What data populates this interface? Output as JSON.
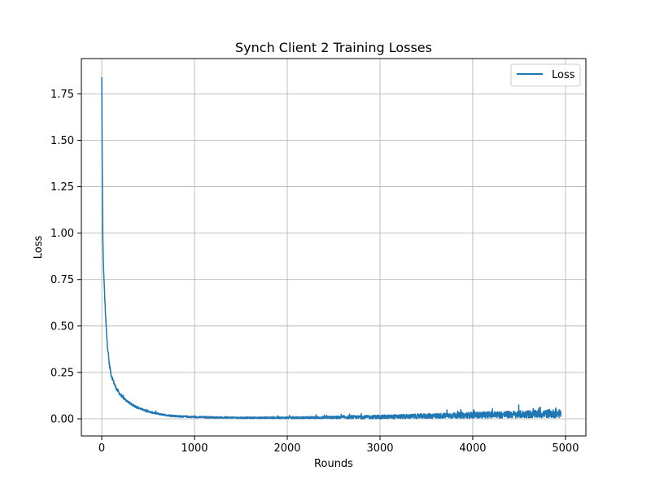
{
  "chart_data": {
    "type": "line",
    "title": "Synch Client 2 Training Losses",
    "xlabel": "Rounds",
    "ylabel": "Loss",
    "xlim": [
      -220,
      5220
    ],
    "ylim": [
      -0.092,
      1.94
    ],
    "x_ticks": [
      0,
      1000,
      2000,
      3000,
      4000,
      5000
    ],
    "x_tick_labels": [
      "0",
      "1000",
      "2000",
      "3000",
      "4000",
      "5000"
    ],
    "y_ticks": [
      0.0,
      0.25,
      0.5,
      0.75,
      1.0,
      1.25,
      1.5,
      1.75
    ],
    "y_tick_labels": [
      "0.00",
      "0.25",
      "0.50",
      "0.75",
      "1.00",
      "1.25",
      "1.50",
      "1.75"
    ],
    "grid": true,
    "legend_position": "top-right",
    "series": [
      {
        "name": "Loss",
        "color": "#1f77b4",
        "x": [
          0,
          5,
          10,
          15,
          20,
          30,
          40,
          50,
          60,
          70,
          80,
          100,
          120,
          150,
          180,
          200,
          250,
          300,
          350,
          400,
          450,
          500,
          550,
          600,
          650,
          700,
          750,
          800,
          850,
          900,
          950,
          1000,
          1100,
          1200,
          1300,
          1400,
          1500,
          1600,
          1700,
          1800,
          1900,
          2000,
          2100,
          2200,
          2300,
          2400,
          2500,
          2600,
          2700,
          2800,
          2900,
          3000,
          3100,
          3200,
          3300,
          3400,
          3500,
          3600,
          3700,
          3800,
          3900,
          4000,
          4100,
          4200,
          4300,
          4400,
          4500,
          4600,
          4700,
          4800,
          4900,
          4950
        ],
        "values": [
          1.84,
          1.35,
          1.02,
          0.88,
          0.8,
          0.68,
          0.56,
          0.47,
          0.4,
          0.35,
          0.3,
          0.24,
          0.21,
          0.17,
          0.145,
          0.13,
          0.105,
          0.085,
          0.07,
          0.058,
          0.048,
          0.04,
          0.033,
          0.028,
          0.024,
          0.02,
          0.017,
          0.015,
          0.013,
          0.012,
          0.011,
          0.01,
          0.009,
          0.008,
          0.007,
          0.007,
          0.006,
          0.006,
          0.006,
          0.006,
          0.006,
          0.006,
          0.006,
          0.007,
          0.007,
          0.007,
          0.008,
          0.008,
          0.009,
          0.009,
          0.01,
          0.01,
          0.011,
          0.012,
          0.013,
          0.014,
          0.015,
          0.016,
          0.017,
          0.018,
          0.019,
          0.02,
          0.021,
          0.022,
          0.022,
          0.023,
          0.024,
          0.025,
          0.026,
          0.027,
          0.028,
          0.028
        ],
        "noise_max": [
          0.0,
          0.0,
          0.0,
          0.0,
          0.0,
          0.02,
          0.03,
          0.03,
          0.025,
          0.02,
          0.02,
          0.02,
          0.02,
          0.015,
          0.015,
          0.012,
          0.012,
          0.01,
          0.01,
          0.01,
          0.008,
          0.008,
          0.008,
          0.008,
          0.008,
          0.008,
          0.008,
          0.008,
          0.008,
          0.008,
          0.008,
          0.008,
          0.007,
          0.007,
          0.007,
          0.007,
          0.007,
          0.007,
          0.007,
          0.008,
          0.008,
          0.008,
          0.009,
          0.009,
          0.01,
          0.011,
          0.012,
          0.013,
          0.014,
          0.015,
          0.016,
          0.017,
          0.018,
          0.019,
          0.02,
          0.021,
          0.022,
          0.023,
          0.024,
          0.025,
          0.026,
          0.028,
          0.029,
          0.03,
          0.031,
          0.032,
          0.033,
          0.034,
          0.035,
          0.037,
          0.038,
          0.038
        ]
      }
    ]
  }
}
